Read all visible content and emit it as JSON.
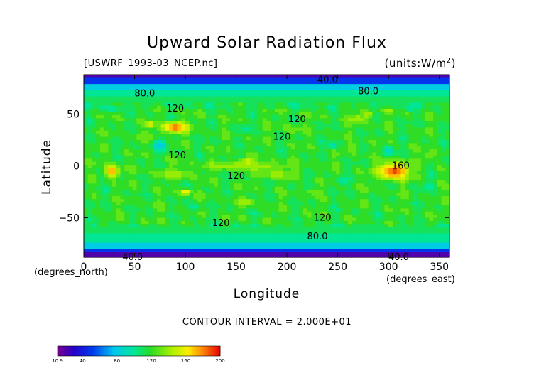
{
  "chart_data": {
    "type": "heatmap",
    "title": "Upward Solar Radiation Flux",
    "file_label": "[USWRF_1993-03_NCEP.nc]",
    "units_label": "(units:W/m^2)",
    "xlabel": "Longitude",
    "ylabel": "Latitude",
    "x_unit_label": "(degrees_east)",
    "y_unit_label": "(degrees_north)",
    "contour_interval": "CONTOUR INTERVAL = 2.000E+01",
    "xlim": [
      0,
      360
    ],
    "ylim": [
      -88,
      88
    ],
    "x_ticks": [
      0,
      50,
      100,
      150,
      200,
      250,
      300,
      350
    ],
    "x_tick_labels": [
      "0",
      "50",
      "100",
      "150",
      "200",
      "250",
      "300",
      "350"
    ],
    "y_ticks": [
      50,
      0,
      -50
    ],
    "y_tick_labels": [
      "50",
      "0",
      "−50"
    ],
    "colorbar": {
      "min": 10.9,
      "max": 200,
      "tick_values": [
        10.9,
        40,
        80,
        120,
        160,
        200
      ],
      "tick_labels": [
        "10.9",
        "40",
        "80",
        "120",
        "160",
        "200"
      ]
    },
    "contour_labels": [
      {
        "text": "40.0",
        "lon": 240,
        "lat": 83
      },
      {
        "text": "80.0",
        "lon": 60,
        "lat": 70
      },
      {
        "text": "80.0",
        "lon": 280,
        "lat": 72
      },
      {
        "text": "120",
        "lon": 90,
        "lat": 55
      },
      {
        "text": "120",
        "lon": 210,
        "lat": 45
      },
      {
        "text": "120",
        "lon": 195,
        "lat": 28
      },
      {
        "text": "120",
        "lon": 92,
        "lat": 10
      },
      {
        "text": "120",
        "lon": 150,
        "lat": -10
      },
      {
        "text": "160",
        "lon": 312,
        "lat": 0
      },
      {
        "text": "120",
        "lon": 235,
        "lat": -50
      },
      {
        "text": "120",
        "lon": 135,
        "lat": -55
      },
      {
        "text": "80.0",
        "lon": 230,
        "lat": -68
      },
      {
        "text": "40.0",
        "lon": 48,
        "lat": -88
      },
      {
        "text": "40.0",
        "lon": 310,
        "lat": -88
      }
    ],
    "regions": [
      {
        "lon": 90,
        "lat": 37,
        "rlon": 12,
        "rlat": 5,
        "value": 185
      },
      {
        "lon": 28,
        "lat": -5,
        "rlon": 7,
        "rlat": 6,
        "value": 175
      },
      {
        "lon": 305,
        "lat": -5,
        "rlon": 15,
        "rlat": 8,
        "value": 190
      },
      {
        "lon": 160,
        "lat": 4,
        "rlon": 8,
        "rlat": 2,
        "value": 170
      },
      {
        "lon": 100,
        "lat": -25,
        "rlon": 5,
        "rlat": 3,
        "value": 165
      },
      {
        "lon": 65,
        "lat": 40,
        "rlon": 4,
        "rlat": 3,
        "value": 165
      },
      {
        "lon": 280,
        "lat": 50,
        "rlon": 5,
        "rlat": 3,
        "value": 150
      },
      {
        "lon": 300,
        "lat": 53,
        "rlon": 4,
        "rlat": 2,
        "value": 150
      },
      {
        "lon": 160,
        "lat": 0,
        "rlon": 40,
        "rlat": 4,
        "value": 145
      },
      {
        "lon": 90,
        "lat": -8,
        "rlon": 18,
        "rlat": 5,
        "value": 140
      },
      {
        "lon": 190,
        "lat": -8,
        "rlon": 15,
        "rlat": 5,
        "value": 140
      },
      {
        "lon": 270,
        "lat": 45,
        "rlon": 10,
        "rlat": 5,
        "value": 142
      },
      {
        "lon": 60,
        "lat": 28,
        "rlon": 10,
        "rlat": 5,
        "value": 135
      },
      {
        "lon": 265,
        "lat": 18,
        "rlon": 6,
        "rlat": 4,
        "value": 135
      },
      {
        "lon": 160,
        "lat": -35,
        "rlon": 8,
        "rlat": 4,
        "value": 140
      },
      {
        "lon": 225,
        "lat": -25,
        "rlon": 8,
        "rlat": 3,
        "value": 135
      },
      {
        "lon": 205,
        "lat": 35,
        "rlon": 10,
        "rlat": 4,
        "value": 132
      },
      {
        "lon": 340,
        "lat": 10,
        "rlon": 6,
        "rlat": 5,
        "value": 135
      },
      {
        "lon": 75,
        "lat": 20,
        "rlon": 6,
        "rlat": 5,
        "value": 75
      },
      {
        "lon": 245,
        "lat": 20,
        "rlon": 5,
        "rlat": 4,
        "value": 90
      },
      {
        "lon": 300,
        "lat": 15,
        "rlon": 5,
        "rlat": 5,
        "value": 90
      },
      {
        "lon": 160,
        "lat": 35,
        "rlon": 6,
        "rlat": 3,
        "value": 100
      },
      {
        "lon": 255,
        "lat": -15,
        "rlon": 5,
        "rlat": 4,
        "value": 95
      },
      {
        "lon": 110,
        "lat": -40,
        "rlon": 6,
        "rlat": 3,
        "value": 95
      },
      {
        "lon": 320,
        "lat": 55,
        "rlon": 4,
        "rlat": 2,
        "value": 88
      },
      {
        "lon": 30,
        "lat": 55,
        "rlon": 5,
        "rlat": 3,
        "value": 90
      },
      {
        "lon": 340,
        "lat": -20,
        "rlon": 6,
        "rlat": 4,
        "value": 98
      }
    ]
  }
}
